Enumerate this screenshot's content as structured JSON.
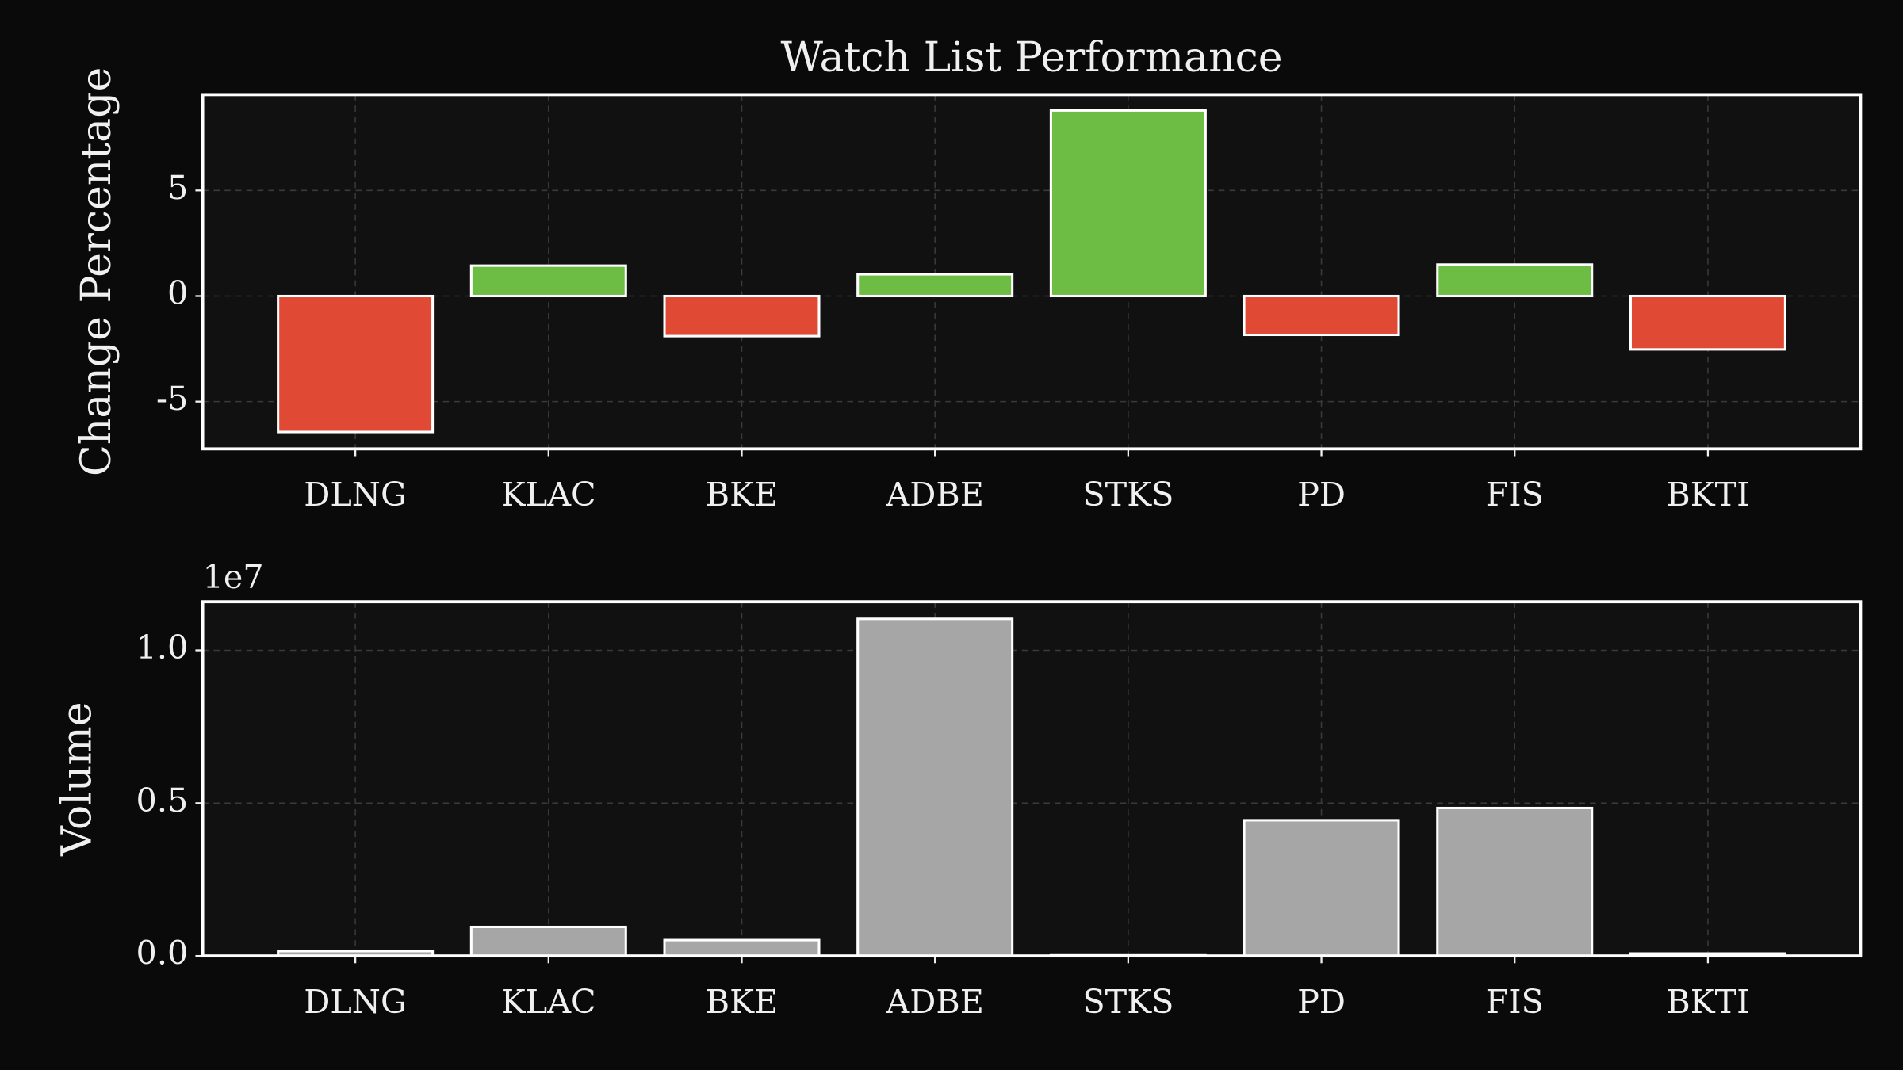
{
  "chart_data": [
    {
      "type": "bar",
      "title": "Watch List Performance",
      "ylabel": "Change Percentage",
      "categories": [
        "DLNG",
        "KLAC",
        "BKE",
        "ADBE",
        "STKS",
        "PD",
        "FIS",
        "BKTI"
      ],
      "values": [
        -6.44,
        1.44,
        -1.9,
        1.03,
        8.79,
        -1.84,
        1.49,
        -2.53
      ],
      "positive_color": "#6dbd45",
      "negative_color": "#e04a35",
      "ylim": [
        -7.24,
        9.54
      ],
      "yticks": [
        -5,
        0,
        5
      ],
      "grid": true
    },
    {
      "type": "bar",
      "ylabel": "Volume",
      "y_offset_label": "1e7",
      "categories": [
        "DLNG",
        "KLAC",
        "BKE",
        "ADBE",
        "STKS",
        "PD",
        "FIS",
        "BKTI"
      ],
      "values": [
        160000,
        950000,
        520000,
        11030000,
        20000,
        4440000,
        4840000,
        80000
      ],
      "color": "#a6a6a6",
      "ylim": [
        0,
        11590000
      ],
      "yticks": [
        {
          "value": 0,
          "label": "0.0"
        },
        {
          "value": 5000000,
          "label": "0.5"
        },
        {
          "value": 10000000,
          "label": "1.0"
        }
      ],
      "grid": true
    }
  ]
}
